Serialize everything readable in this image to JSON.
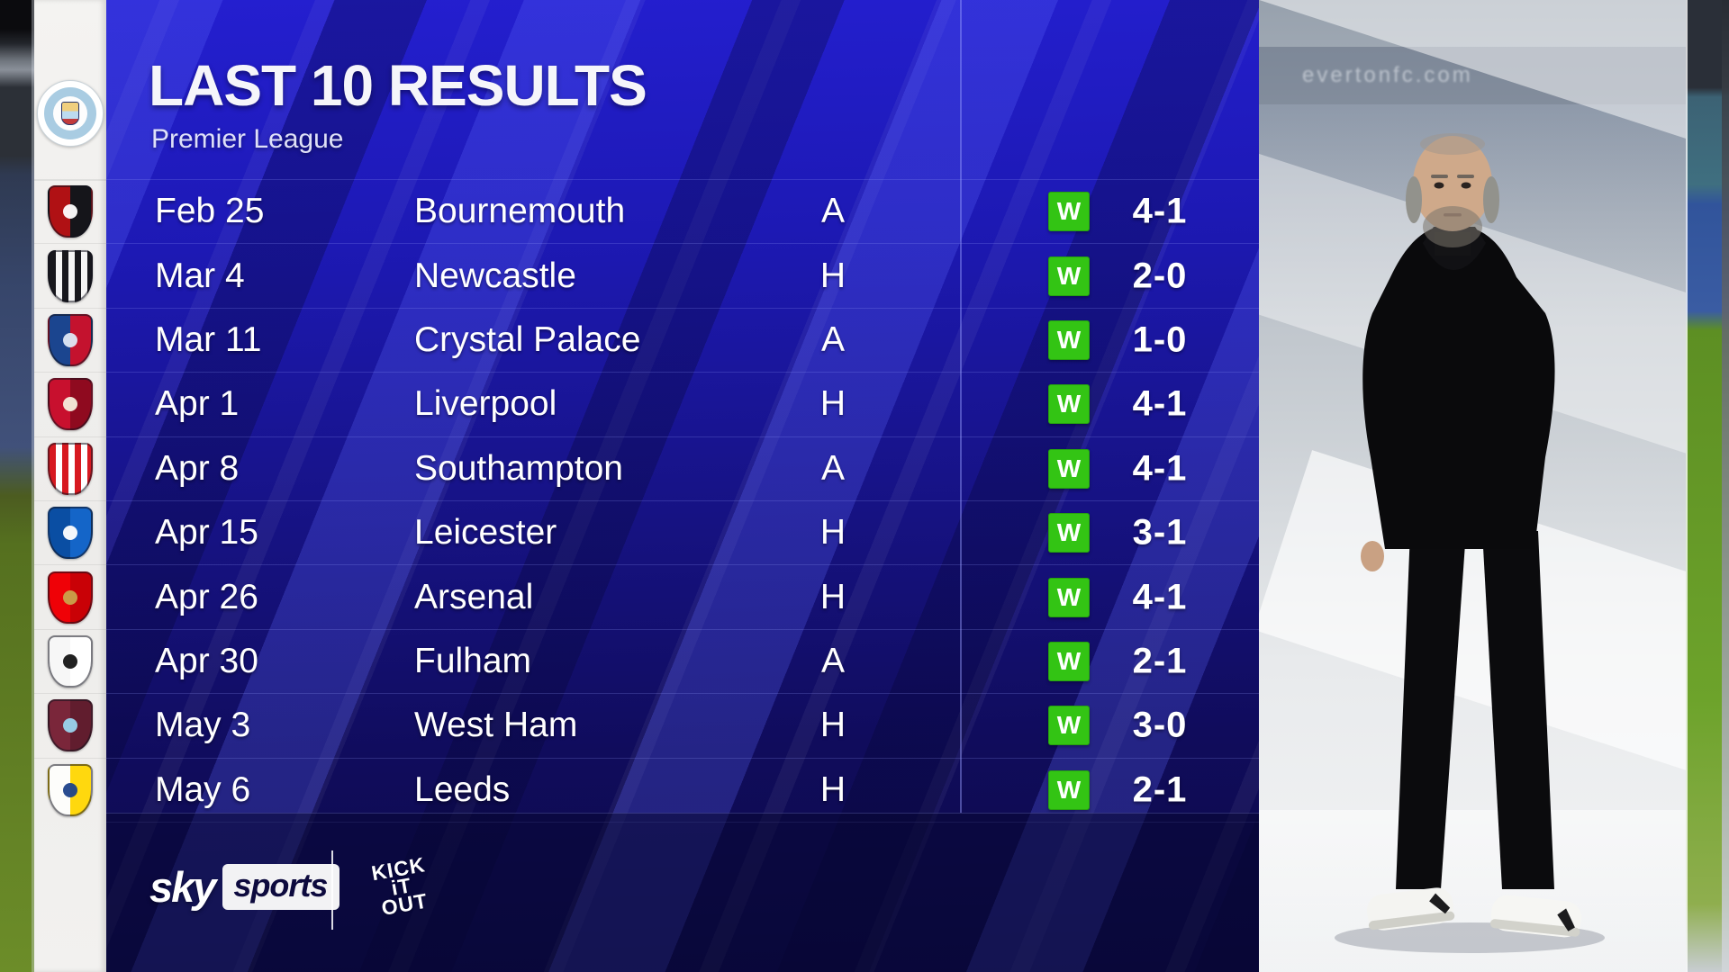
{
  "header": {
    "title": "LAST 10 RESULTS",
    "subtitle": "Premier League"
  },
  "team": {
    "name": "Manchester City",
    "crest_text": "MANCHESTER CITY"
  },
  "results": [
    {
      "date": "Feb 25",
      "opponent": "Bournemouth",
      "venue": "A",
      "outcome": "W",
      "score": "4-1",
      "crest_pattern": "split",
      "crest_colors": [
        "#b01114",
        "#15151a"
      ],
      "crest_inner": "#ffffff"
    },
    {
      "date": "Mar 4",
      "opponent": "Newcastle",
      "venue": "H",
      "outcome": "W",
      "score": "2-0",
      "crest_pattern": "stripes",
      "crest_colors": [
        "#17171c",
        "#f5f5f5"
      ],
      "crest_inner": null
    },
    {
      "date": "Mar 11",
      "opponent": "Crystal Palace",
      "venue": "A",
      "outcome": "W",
      "score": "1-0",
      "crest_pattern": "split",
      "crest_colors": [
        "#1b458f",
        "#c4122e"
      ],
      "crest_inner": "#dfe8f5"
    },
    {
      "date": "Apr 1",
      "opponent": "Liverpool",
      "venue": "H",
      "outcome": "W",
      "score": "4-1",
      "crest_pattern": "split",
      "crest_colors": [
        "#c8102e",
        "#8f0a1f"
      ],
      "crest_inner": "#f6eedd"
    },
    {
      "date": "Apr 8",
      "opponent": "Southampton",
      "venue": "A",
      "outcome": "W",
      "score": "4-1",
      "crest_pattern": "stripes",
      "crest_colors": [
        "#d71920",
        "#ffffff"
      ],
      "crest_inner": null
    },
    {
      "date": "Apr 15",
      "opponent": "Leicester",
      "venue": "H",
      "outcome": "W",
      "score": "3-1",
      "crest_pattern": "split",
      "crest_colors": [
        "#0a4ea3",
        "#1465c8"
      ],
      "crest_inner": "#ffffff"
    },
    {
      "date": "Apr 26",
      "opponent": "Arsenal",
      "venue": "H",
      "outcome": "W",
      "score": "4-1",
      "crest_pattern": "split",
      "crest_colors": [
        "#ef0107",
        "#c90106"
      ],
      "crest_inner": "#c9a24b"
    },
    {
      "date": "Apr 30",
      "opponent": "Fulham",
      "venue": "A",
      "outcome": "W",
      "score": "2-1",
      "crest_pattern": "split",
      "crest_colors": [
        "#f7f7f7",
        "#ffffff"
      ],
      "crest_inner": "#151515"
    },
    {
      "date": "May 3",
      "opponent": "West Ham",
      "venue": "H",
      "outcome": "W",
      "score": "3-0",
      "crest_pattern": "split",
      "crest_colors": [
        "#7a263a",
        "#611d2e"
      ],
      "crest_inner": "#9ad5ee"
    },
    {
      "date": "May 6",
      "opponent": "Leeds",
      "venue": "H",
      "outcome": "W",
      "score": "2-1",
      "crest_pattern": "split",
      "crest_colors": [
        "#fdfdfb",
        "#ffd80e"
      ],
      "crest_inner": "#1d428a"
    }
  ],
  "footer": {
    "sky_word": "sky",
    "sports_word": "sports",
    "kick_it_out": {
      "line1": "KICK",
      "line2": "iT",
      "line3": "OUT"
    }
  },
  "background": {
    "stadium_watermark": "evertonfc.com"
  },
  "colors": {
    "win_green": "#33c414",
    "panel_blue_top": "#241fd0",
    "panel_blue_bottom": "#0c0944",
    "divider": "#969eff",
    "sky_navy": "#0d0a3e",
    "crest_rail": "#f1efec"
  }
}
